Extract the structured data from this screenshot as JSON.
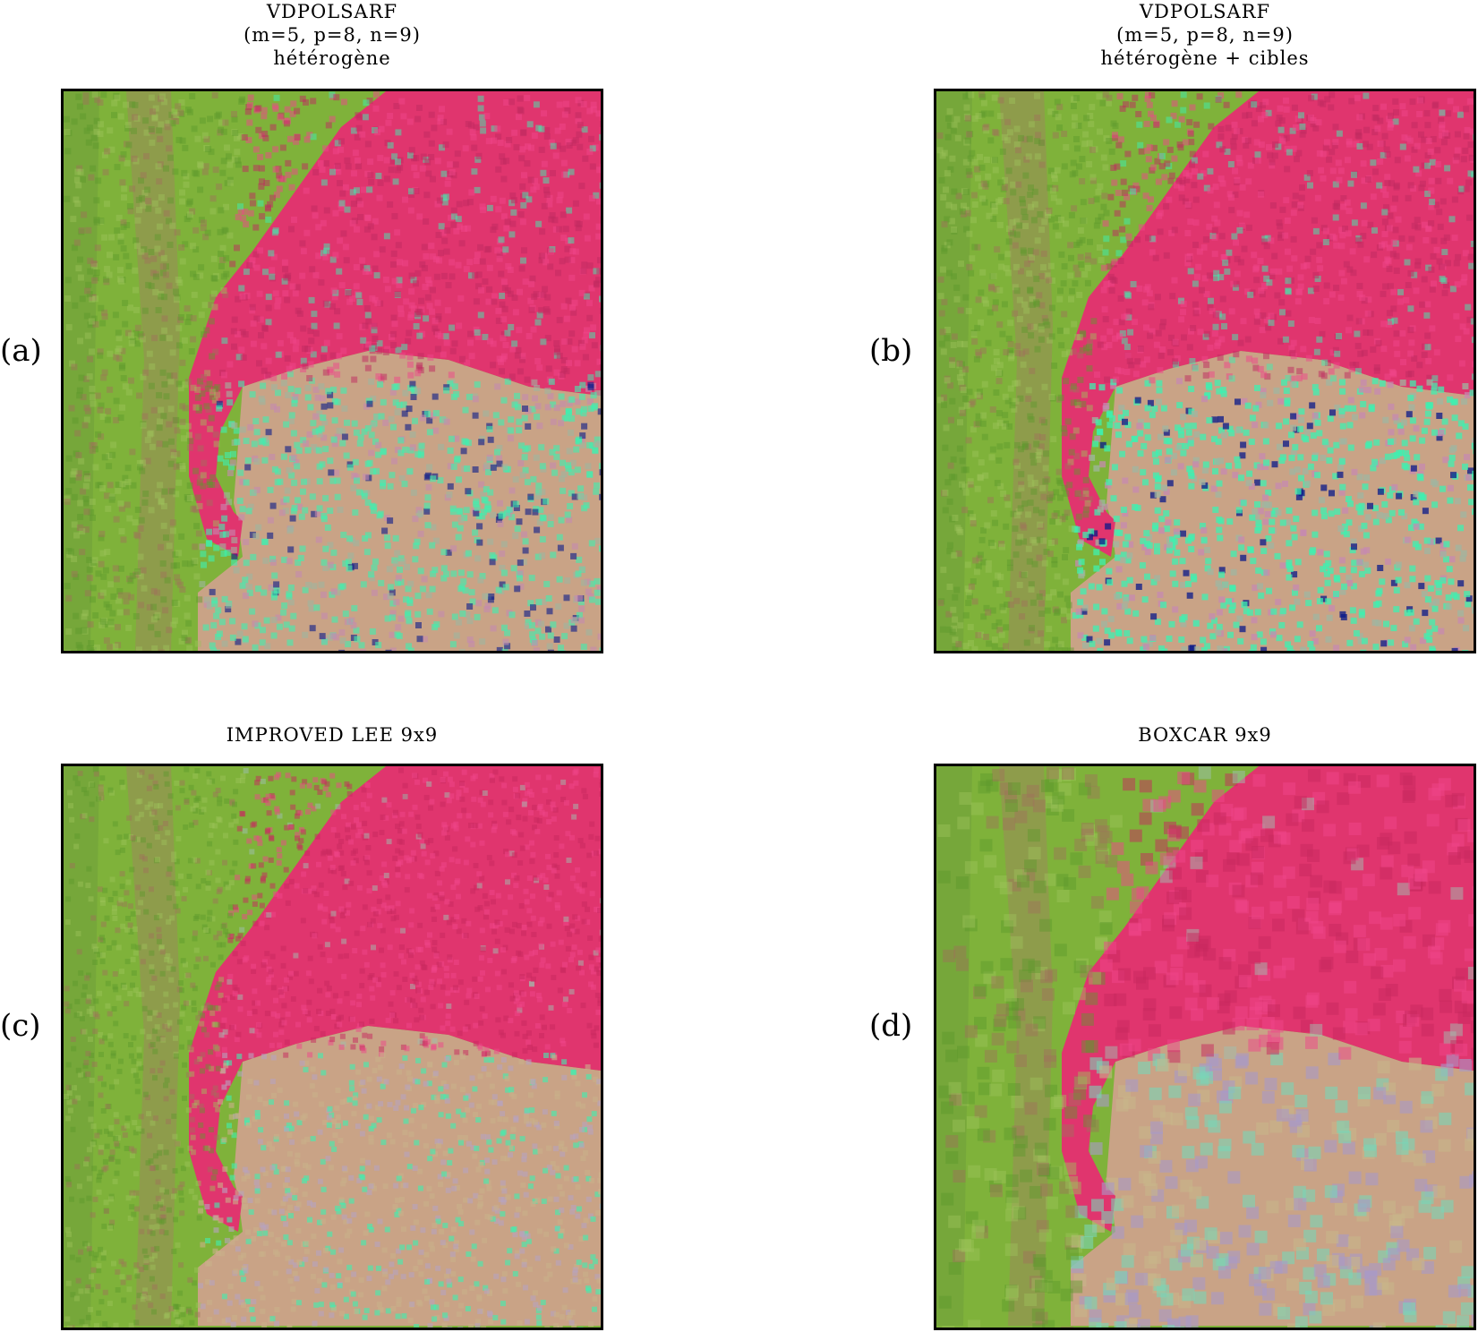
{
  "panels": [
    {
      "id": "a",
      "tag": "(a)",
      "title_lines": [
        "VDPOLSARF",
        "(m=5, p=8, n=9)",
        "hétérogène"
      ],
      "style": "vdpol-a"
    },
    {
      "id": "b",
      "tag": "(b)",
      "title_lines": [
        "VDPOLSARF",
        "(m=5, p=8, n=9)",
        "hétérogène + cibles"
      ],
      "style": "vdpol-b"
    },
    {
      "id": "c",
      "tag": "(c)",
      "title_lines": [
        "IMPROVED LEE 9x9"
      ],
      "style": "lee"
    },
    {
      "id": "d",
      "tag": "(d)",
      "title_lines": [
        "BOXCAR 9x9"
      ],
      "style": "boxcar"
    }
  ],
  "colors": {
    "vegetation_green": "#7fb23a",
    "forest_pink": "#e0356e",
    "field_tan": "#c9a386",
    "speckle_cyan": "#3df0b0",
    "dark_blue": "#0a1a8a",
    "frame_border": "#000000"
  }
}
